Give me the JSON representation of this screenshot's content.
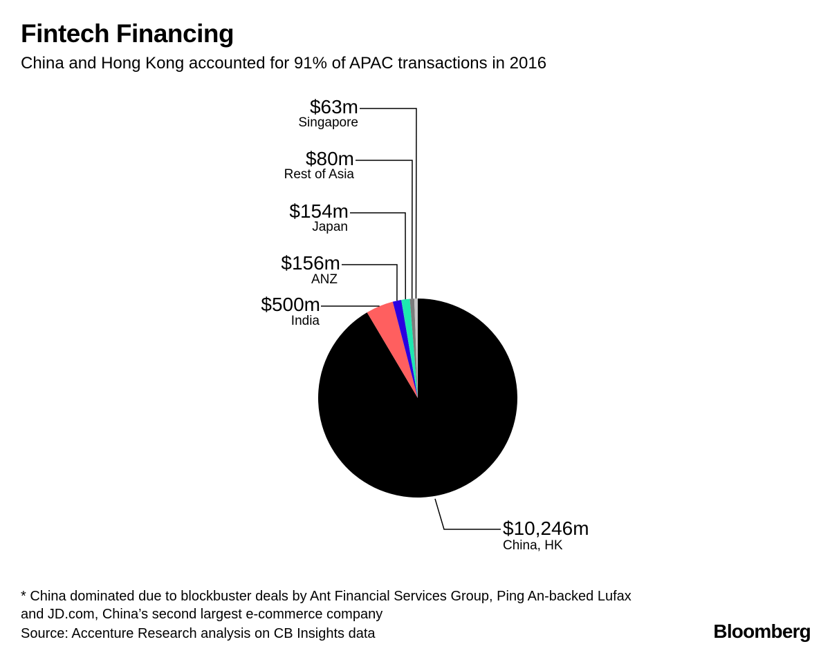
{
  "title": "Fintech Financing",
  "subtitle": "China and Hong Kong accounted for 91% of APAC transactions in 2016",
  "chart_data": {
    "type": "pie",
    "title": "Fintech Financing",
    "subtitle": "China and Hong Kong accounted for 91% of APAC transactions in 2016",
    "unit": "$m",
    "start": "12 o'clock",
    "direction": "counterclockwise from China, HK",
    "slices": [
      {
        "name": "China, HK",
        "value": 10246,
        "label": "$10,246m",
        "color": "#000000"
      },
      {
        "name": "India",
        "value": 500,
        "label": "$500m",
        "color": "#ff5f5f"
      },
      {
        "name": "ANZ",
        "value": 156,
        "label": "$156m",
        "color": "#2a00e0"
      },
      {
        "name": "Japan",
        "value": 154,
        "label": "$154m",
        "color": "#1ee8b0"
      },
      {
        "name": "Rest of Asia",
        "value": 80,
        "label": "$80m",
        "color": "#7c7c7c"
      },
      {
        "name": "Singapore",
        "value": 63,
        "label": "$63m",
        "color": "#c8c8c8"
      }
    ]
  },
  "footnote": "* China dominated due to blockbuster deals by Ant Financial Services Group, Ping An-backed Lufax and JD.com, China’s second largest e-commerce company",
  "source": "Source: Accenture Research analysis on CB Insights data",
  "brand": "Bloomberg"
}
